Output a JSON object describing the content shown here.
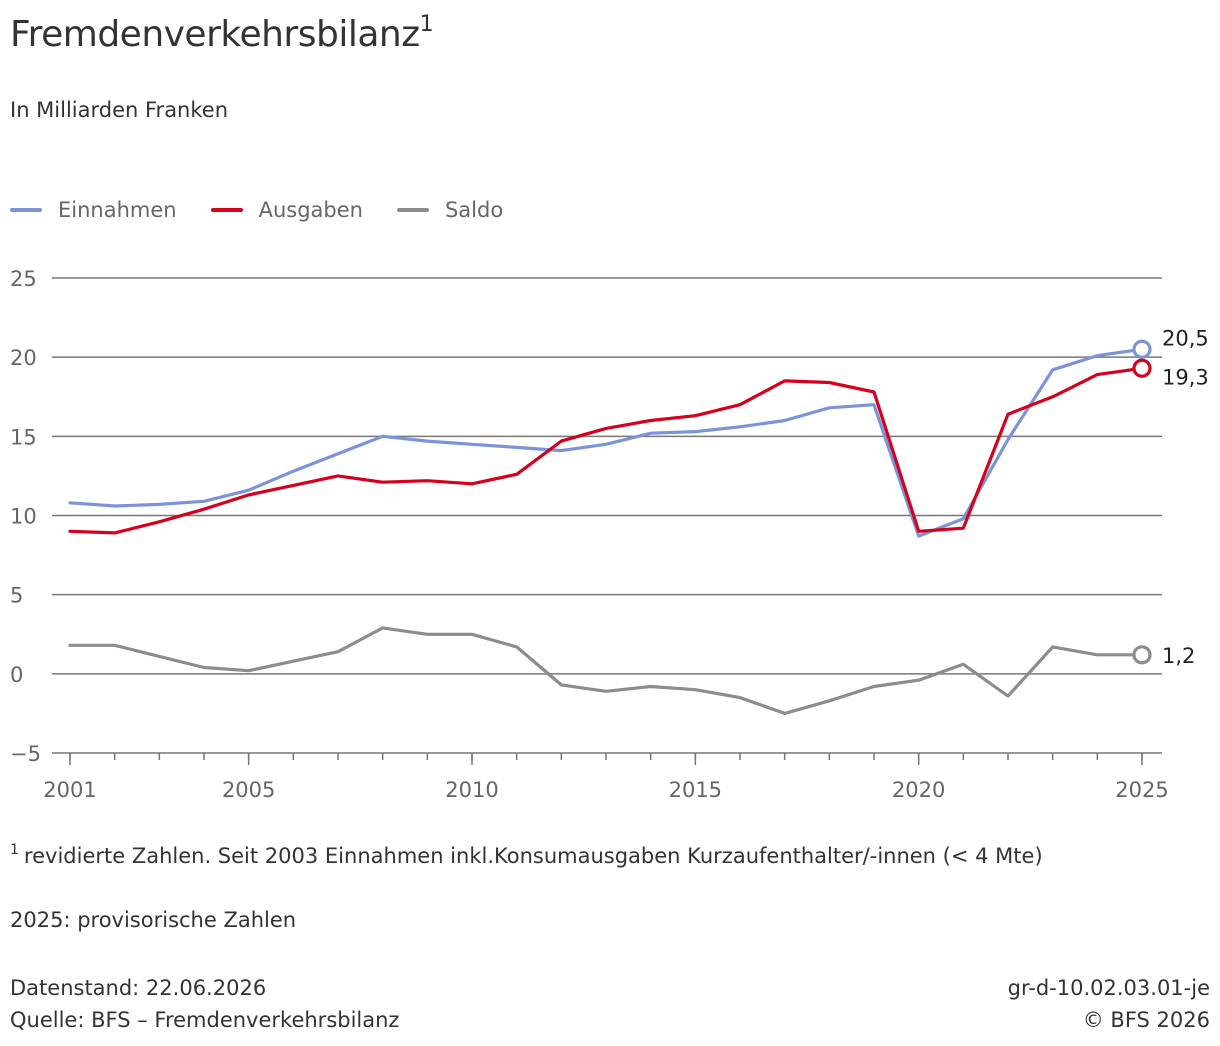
{
  "header": {
    "title": "Fremdenverkehrsbilanz",
    "title_sup": "1",
    "subtitle": "In Milliarden Franken"
  },
  "legend": [
    {
      "label": "Einnahmen",
      "color": "#7b93d9"
    },
    {
      "label": "Ausgaben",
      "color": "#d5001c"
    },
    {
      "label": "Saldo",
      "color": "#8c8c8c"
    }
  ],
  "chart_data": {
    "type": "line",
    "title": "Fremdenverkehrsbilanz",
    "subtitle": "In Milliarden Franken",
    "x": [
      2001,
      2002,
      2003,
      2004,
      2005,
      2006,
      2007,
      2008,
      2009,
      2010,
      2011,
      2012,
      2013,
      2014,
      2015,
      2016,
      2017,
      2018,
      2019,
      2020,
      2021,
      2022,
      2023,
      2024,
      2025
    ],
    "x_ticks": [
      "2001",
      "2005",
      "2010",
      "2015",
      "2020",
      "2025"
    ],
    "y_ticks": [
      "25",
      "20",
      "15",
      "10",
      "5",
      "0",
      "−5"
    ],
    "ylim": [
      -5,
      25
    ],
    "grid": true,
    "legend_position": "top-left",
    "series": [
      {
        "name": "Einnahmen",
        "color": "#7b93d9",
        "values": [
          10.8,
          10.6,
          10.7,
          10.9,
          11.6,
          12.8,
          13.9,
          15.0,
          14.7,
          14.5,
          14.3,
          14.1,
          14.5,
          15.2,
          15.3,
          15.6,
          16.0,
          16.8,
          17.0,
          8.7,
          9.8,
          14.8,
          19.2,
          20.1,
          20.5
        ],
        "end_label": "20,5"
      },
      {
        "name": "Ausgaben",
        "color": "#d5001c",
        "values": [
          9.0,
          8.9,
          9.6,
          10.4,
          11.3,
          11.9,
          12.5,
          12.1,
          12.2,
          12.0,
          12.6,
          14.7,
          15.5,
          16.0,
          16.3,
          17.0,
          18.5,
          18.4,
          17.8,
          9.0,
          9.2,
          16.4,
          17.5,
          18.9,
          19.3
        ],
        "end_label": "19,3"
      },
      {
        "name": "Saldo",
        "color": "#8c8c8c",
        "values": [
          1.8,
          1.8,
          1.1,
          0.4,
          0.2,
          0.8,
          1.4,
          2.9,
          2.5,
          2.5,
          1.7,
          -0.7,
          -1.1,
          -0.8,
          -1.0,
          -1.5,
          -2.5,
          -1.7,
          -0.8,
          -0.4,
          0.6,
          -1.4,
          1.7,
          1.2,
          1.2
        ],
        "end_label": "1,2"
      }
    ]
  },
  "notes": {
    "footnote_sup": "1",
    "footnote_text": "revidierte Zahlen. Seit 2003 Einnahmen inkl.Konsumausgaben Kurzaufenthalter/-innen (< 4 Mte)",
    "provisional": "2025: provisorische Zahlen",
    "datenstand": "Datenstand: 22.06.2026",
    "quelle": "Quelle: BFS – Fremdenverkehrsbilanz",
    "code": "gr-d-10.02.03.01-je",
    "copyright": "© BFS 2026"
  }
}
